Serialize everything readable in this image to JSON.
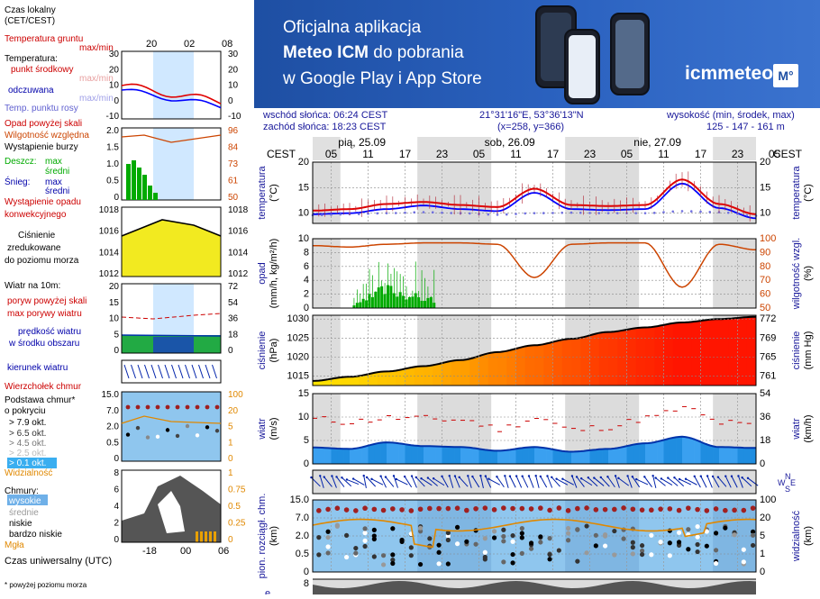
{
  "banner": {
    "line1": "Oficjalna aplikacja",
    "line2_bold": "Meteo ICM",
    "line2_rest": " do pobrania",
    "line3": "w Google Play i App Store",
    "logo_text": "icmmeteo",
    "logo_badge": "M°"
  },
  "info": {
    "sunrise": "wschód słońca: 06:24 CEST",
    "sunset": "zachód słońca: 18:23 CEST",
    "coords": "21°31'16\"E, 53°36'13\"N",
    "grid": "(x=258,  y=366)",
    "elev_label": "wysokość (min, środek, max)",
    "elev_values": "125 - 147 - 161 m"
  },
  "legend": {
    "local_time": "Czas lokalny",
    "local_time_tz": "(CET/CEST)",
    "top_ticks": [
      "20",
      "02",
      "08"
    ],
    "utc_label": "Czas uniwersalny (UTC)",
    "bottom_ticks": [
      "18",
      "00",
      "06"
    ],
    "footnote": "* powyżej poziomu morza",
    "temp": {
      "ground": "Temperatura gruntu",
      "ground_mm": "max/min",
      "title": "Temperatura:",
      "mid": "punkt środkowy",
      "mid_mm": "max/min",
      "feel": "odczuwana",
      "feel_mm": "max/min",
      "dew": "Temp. punktu rosy",
      "ticks_left": [
        "30",
        "20",
        "10",
        "0",
        "-10"
      ],
      "ticks_right": [
        "30",
        "20",
        "10",
        "0",
        "-10"
      ]
    },
    "precip": {
      "over": "Opad powyżej skali",
      "rh": "Wilgotność względna",
      "storm": "Wystąpienie burzy",
      "rain": "Deszcz:",
      "max": "max",
      "mean": "średni",
      "snow": "Śnieg:",
      "conv1": "Wystąpienie opadu",
      "conv2": "konwekcyjnego",
      "ticks_left": [
        "2.0",
        "1.5",
        "1.0",
        "0.5",
        "0"
      ],
      "ticks_right": [
        "96",
        "84",
        "73",
        "61",
        "50"
      ]
    },
    "pressure": {
      "l1": "Ciśnienie",
      "l2": "zredukowane",
      "l3": "do poziomu morza",
      "ticks_left": [
        "1018",
        "1016",
        "1014",
        "1012"
      ],
      "ticks_right": [
        "1018",
        "1016",
        "1014",
        "1012"
      ]
    },
    "wind": {
      "title": "Wiatr na 10m:",
      "gust_over": "poryw powyżej skali",
      "gust": "max porywy wiatru",
      "speed": "prędkość wiatru",
      "speed2": "w środku obszaru",
      "ticks_left": [
        "20",
        "15",
        "10",
        "5",
        "0"
      ],
      "ticks_right": [
        "72",
        "54",
        "36",
        "18",
        "0"
      ],
      "direction": "kierunek wiatru"
    },
    "cloudbase": {
      "top": "Wierzchołek chmur",
      "base": "Podstawa chmur*",
      "cover": "o pokryciu",
      "o1": "> 7.9 okt.",
      "o2": "> 6.5 okt.",
      "o3": "> 4.5 okt.",
      "o4": "> 2.5 okt.",
      "o5": "> 0.1 okt.",
      "vis": "Widzialność",
      "ticks_left": [
        "15.0",
        "7.0",
        "2.0",
        "0.5",
        "0"
      ],
      "ticks_right": [
        "100",
        "20",
        "5",
        "1",
        "0"
      ]
    },
    "clouds": {
      "title": "Chmury:",
      "high": "wysokie",
      "mid": "średnie",
      "low": "niskie",
      "vlow": "bardzo niskie",
      "fog": "Mgła",
      "ticks_left": [
        "8",
        "6",
        "4",
        "2",
        "0"
      ],
      "ticks_right": [
        "1",
        "0.75",
        "0.5",
        "0.25",
        "0"
      ]
    }
  },
  "main": {
    "tz_left": "CEST",
    "tz_right": "CEST",
    "days": [
      "pią, 25.09",
      "sob, 26.09",
      "nie, 27.09"
    ],
    "hour_labels": [
      "05",
      "11",
      "17",
      "23",
      "05",
      "11",
      "17",
      "23",
      "05",
      "11",
      "17",
      "23",
      "05"
    ],
    "panels": {
      "temp": {
        "label_left": "temperatura",
        "unit_left": "(°C)",
        "label_right": "temperatura",
        "unit_right": "(°C)",
        "ticks_left": [
          "20",
          "15",
          "10"
        ],
        "ticks_right": [
          "20",
          "15",
          "10"
        ]
      },
      "precip": {
        "label_left": "opad",
        "unit_left": "(mm/h, kg/m²/h)",
        "label_right": "wilgotność wzgl.",
        "unit_right": "(%)",
        "ticks_left": [
          "10",
          "8",
          "6",
          "4",
          "2",
          "0"
        ],
        "ticks_right": [
          "100",
          "90",
          "80",
          "70",
          "60",
          "50"
        ]
      },
      "pressure": {
        "label_left": "ciśnienie",
        "unit_left": "(hPa)",
        "label_right": "ciśnienie",
        "unit_right": "(mm Hg)",
        "ticks_left": [
          "1030",
          "1025",
          "1020",
          "1015"
        ],
        "ticks_right": [
          "772",
          "769",
          "765",
          "761"
        ]
      },
      "wind": {
        "label_left": "wiatr",
        "unit_left": "(m/s)",
        "label_right": "wiatr",
        "unit_right": "(km/h)",
        "ticks_left": [
          "15",
          "10",
          "5",
          "0"
        ],
        "ticks_right": [
          "54",
          "36",
          "18",
          "0"
        ]
      },
      "dir": {
        "compass_n": "N",
        "compass_w": "W",
        "compass_s": "S",
        "compass_e": "E"
      },
      "cloudbase": {
        "label_left": "pion. rozciągł. chm.",
        "unit_left": "(km)",
        "label_right": "widzialność",
        "unit_right": "(km)",
        "ticks_left": [
          "15.0",
          "7.0",
          "2.0",
          "0.5",
          "0"
        ],
        "ticks_right": [
          "100",
          "20",
          "5",
          "1",
          "0"
        ]
      },
      "clouds": {
        "label_left": "e",
        "ticks_left": [
          "8"
        ]
      }
    }
  },
  "colors": {
    "temp_red": "#e00000",
    "feel_blue": "#0000ff",
    "dew_purple": "#7070e0",
    "rh_orange": "#cc4400",
    "rain_green": "#00aa00",
    "wind_blue": "#0033aa",
    "pressure_fill_low": "#ffee00",
    "pressure_fill_high": "#ff1500",
    "legend_red": "#cc0000",
    "legend_blue": "#0000aa"
  },
  "chart_data": [
    {
      "type": "line",
      "title": "temperatura",
      "x_unit": "hours from 25.09 02:00 CEST (3-day meteogram)",
      "x": [
        0,
        6,
        12,
        18,
        24,
        30,
        36,
        42,
        48,
        54,
        60,
        66,
        72
      ],
      "series": [
        {
          "name": "Temperatura",
          "values": [
            10.5,
            10.8,
            11.8,
            12.2,
            11.6,
            11.2,
            14.8,
            11.6,
            11.4,
            11.6,
            16.6,
            11.8,
            9.8
          ]
        },
        {
          "name": "odczuwana",
          "values": [
            9.8,
            10.0,
            10.8,
            11.5,
            10.8,
            10.4,
            14.0,
            10.8,
            10.6,
            10.8,
            15.8,
            11.0,
            9.0
          ]
        },
        {
          "name": "Temp. punktu rosy",
          "values": [
            9.6,
            9.8,
            10.0,
            10.2,
            10.0,
            9.7,
            10.0,
            10.1,
            10.0,
            10.0,
            10.4,
            10.2,
            9.5
          ]
        }
      ],
      "ylim": [
        8,
        20
      ]
    },
    {
      "type": "bar",
      "title": "opad / wilgotność względna",
      "x": [
        0,
        6,
        12,
        18,
        24,
        30,
        36,
        42,
        48,
        54,
        60,
        66,
        72
      ],
      "series": [
        {
          "name": "opad",
          "values": [
            0,
            0.4,
            2.6,
            1.4,
            0,
            0,
            0,
            0,
            0,
            0,
            0,
            0,
            0
          ]
        },
        {
          "name": "Wilgotność względna",
          "values": [
            95,
            94,
            96,
            97,
            97,
            96,
            72,
            96,
            97,
            97,
            65,
            96,
            92
          ]
        }
      ],
      "ylim": [
        0,
        10
      ]
    },
    {
      "type": "area",
      "title": "ciśnienie",
      "x": [
        0,
        6,
        12,
        18,
        24,
        30,
        36,
        42,
        48,
        54,
        60,
        66,
        72
      ],
      "series": [
        {
          "name": "ciśnienie",
          "values": [
            1013.7,
            1014.8,
            1016.2,
            1017.6,
            1019.2,
            1021.3,
            1023.1,
            1024.8,
            1026.6,
            1027.8,
            1029.1,
            1030.0,
            1030.6
          ]
        }
      ],
      "ylim": [
        1012,
        1031
      ]
    },
    {
      "type": "line",
      "title": "wiatr",
      "x": [
        0,
        6,
        12,
        18,
        24,
        30,
        36,
        42,
        48,
        54,
        60,
        66,
        72
      ],
      "series": [
        {
          "name": "prędkość wiatru",
          "values": [
            3.5,
            3.2,
            4.6,
            3.8,
            3.6,
            2.8,
            3.6,
            2.6,
            3.2,
            4.4,
            5.8,
            3.6,
            3.4
          ]
        },
        {
          "name": "max porywy wiatru",
          "values": [
            9.5,
            9.0,
            9.8,
            9.6,
            9.4,
            7.5,
            9.8,
            7.2,
            8.0,
            9.8,
            11.8,
            8.8,
            8.0
          ]
        }
      ],
      "ylim": [
        0,
        15
      ]
    }
  ]
}
